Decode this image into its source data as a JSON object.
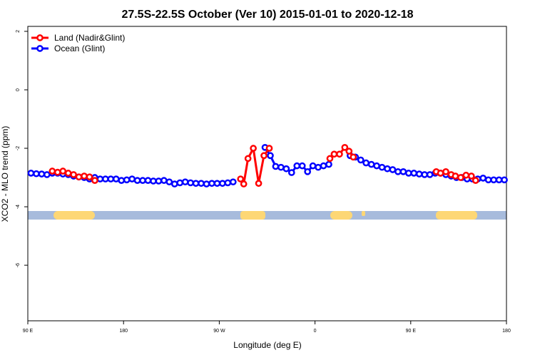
{
  "chart_data": {
    "type": "line",
    "title": "27.5S-22.5S October (Ver 10)   2015-01-01 to 2020-12-18",
    "xlabel": "Longitude (deg E)",
    "ylabel": "XCO2 - MLO trend (ppm)",
    "xlim": [
      90,
      540
    ],
    "ylim": [
      -7.9,
      2.17
    ],
    "xticks": [
      {
        "value": 90,
        "label": "90 E"
      },
      180,
      {
        "value": 270,
        "label": "90 W"
      },
      {
        "value": 360,
        "label": "0"
      },
      {
        "value": 450,
        "label": "90 E"
      },
      {
        "value": 540,
        "label": "180"
      }
    ],
    "yticks": [
      2,
      0,
      -2,
      -4,
      -6
    ],
    "legend": "top-left",
    "series": [
      {
        "name": "Ocean (Glint)",
        "color": "#0000ff",
        "x": [
          93,
          98,
          103,
          108,
          113,
          118,
          123,
          128,
          133,
          138,
          143,
          148,
          153,
          158,
          163,
          168,
          173,
          178,
          183,
          188,
          193,
          198,
          203,
          208,
          213,
          218,
          223,
          228,
          233,
          238,
          243,
          248,
          253,
          258,
          263,
          268,
          273,
          278,
          283,
          298,
          313,
          318,
          323,
          328,
          333,
          338,
          343,
          348,
          353,
          358,
          363,
          368,
          373,
          383,
          393,
          398,
          403,
          408,
          413,
          418,
          423,
          428,
          433,
          438,
          443,
          448,
          453,
          458,
          463,
          468,
          473,
          478,
          483,
          488,
          493,
          498,
          503,
          508,
          513,
          518,
          523,
          528,
          533,
          538
        ],
        "values": [
          -2.85,
          -2.87,
          -2.88,
          -2.9,
          -2.85,
          -2.85,
          -2.88,
          -2.9,
          -2.95,
          -2.98,
          -3.0,
          -3.05,
          -3.0,
          -3.05,
          -3.05,
          -3.05,
          -3.05,
          -3.1,
          -3.08,
          -3.05,
          -3.1,
          -3.1,
          -3.1,
          -3.12,
          -3.12,
          -3.1,
          -3.15,
          -3.22,
          -3.18,
          -3.15,
          -3.18,
          -3.2,
          -3.2,
          -3.22,
          -3.2,
          -3.2,
          -3.2,
          -3.18,
          -3.15,
          null,
          -1.97,
          -2.25,
          -2.62,
          -2.65,
          -2.7,
          -2.83,
          -2.6,
          -2.6,
          -2.8,
          -2.6,
          -2.65,
          -2.6,
          -2.55,
          null,
          -2.25,
          -2.3,
          -2.4,
          -2.5,
          -2.55,
          -2.6,
          -2.65,
          -2.7,
          -2.73,
          -2.8,
          -2.8,
          -2.85,
          -2.85,
          -2.88,
          -2.9,
          -2.9,
          -2.85,
          -2.85,
          -2.9,
          -2.95,
          -3.0,
          -3.0,
          -3.05,
          -3.05,
          -3.05,
          -3.02,
          -3.08,
          -3.08,
          -3.08,
          -3.08
        ]
      },
      {
        "name": "Land (Nadir&Glint)",
        "color": "#ff0000",
        "x": [
          113,
          118,
          123,
          128,
          133,
          138,
          143,
          148,
          153,
          200,
          290,
          293,
          297,
          302,
          307,
          312,
          317,
          340,
          374,
          378,
          383,
          388,
          392,
          396,
          430,
          474,
          478,
          483,
          488,
          492,
          497,
          502,
          507,
          511
        ],
        "values": [
          -2.78,
          -2.82,
          -2.78,
          -2.85,
          -2.9,
          -2.98,
          -2.95,
          -2.98,
          -3.1,
          null,
          -3.05,
          -3.22,
          -2.35,
          -2.0,
          -3.2,
          -2.25,
          -2.0,
          null,
          -2.35,
          -2.2,
          -2.2,
          -1.97,
          -2.1,
          -2.3,
          null,
          -2.8,
          -2.85,
          -2.8,
          -2.9,
          -2.95,
          -3.0,
          -2.92,
          -2.95,
          -3.1
        ]
      }
    ]
  }
}
